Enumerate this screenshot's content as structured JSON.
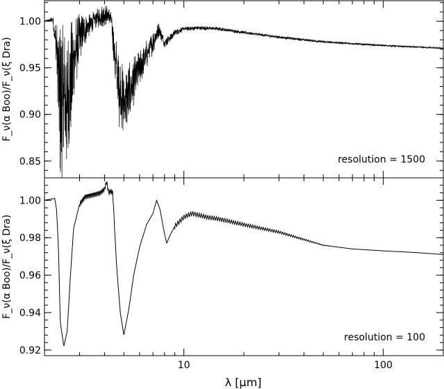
{
  "colors": {
    "line": "#000000",
    "axes": "#000000",
    "background": "#ffffff"
  },
  "xlabel": "λ [μm]",
  "chart_data": [
    {
      "type": "line",
      "title": "",
      "annotation": "resolution = 1500",
      "ylabel": "F_ν(α Boo)/F_ν(ξ Dra)",
      "xscale": "log",
      "xlim": [
        2.0,
        200.0
      ],
      "ylim": [
        0.832,
        1.022
      ],
      "x_tick_labels": [],
      "y_ticks": [
        0.85,
        0.9,
        0.95,
        1.0
      ],
      "y_tick_labels": [
        "0.85",
        "0.90",
        "0.95",
        "1.00"
      ],
      "series": [
        {
          "x": [
            2.0,
            2.2,
            2.3,
            2.4,
            2.6,
            2.8,
            3.0,
            3.3,
            3.6,
            4.0,
            4.3,
            4.5,
            4.7,
            5.0,
            5.3,
            5.8,
            6.3,
            7.0,
            7.5,
            8.0,
            8.5,
            9.0,
            10.0,
            12.0,
            15.0,
            20.0,
            30.0,
            50.0,
            100.0,
            200.0
          ],
          "y": [
            1.0,
            1.002,
            0.975,
            0.92,
            0.92,
            0.96,
            0.985,
            0.995,
            1.003,
            1.008,
            1.005,
            0.965,
            0.935,
            0.915,
            0.925,
            0.945,
            0.96,
            0.978,
            0.992,
            0.977,
            0.982,
            0.988,
            0.992,
            0.993,
            0.992,
            0.988,
            0.983,
            0.978,
            0.974,
            0.971
          ],
          "spread": [
            0,
            0.003,
            0.02,
            0.07,
            0.06,
            0.04,
            0.02,
            0.01,
            0.008,
            0.01,
            0.006,
            0.02,
            0.035,
            0.028,
            0.026,
            0.018,
            0.014,
            0.01,
            0.006,
            0.004,
            0.004,
            0.003,
            0.002,
            0.0018,
            0.0016,
            0.0014,
            0.0012,
            0.001,
            0.0008,
            0.0006
          ]
        }
      ]
    },
    {
      "type": "line",
      "title": "",
      "annotation": "resolution = 100",
      "ylabel": "F_ν(α Boo)/F_ν(ξ Dra)",
      "xscale": "log",
      "xlim": [
        2.0,
        200.0
      ],
      "ylim": [
        0.917,
        1.012
      ],
      "x_ticks": [
        10,
        100
      ],
      "x_tick_labels": [
        "10",
        "100"
      ],
      "y_ticks": [
        0.92,
        0.94,
        0.96,
        0.98,
        1.0
      ],
      "y_tick_labels": [
        "0.92",
        "0.94",
        "0.96",
        "0.98",
        "1.00"
      ],
      "series": [
        {
          "x": [
            2.0,
            2.25,
            2.3,
            2.35,
            2.4,
            2.5,
            2.6,
            2.7,
            2.8,
            3.0,
            3.2,
            3.5,
            3.8,
            4.0,
            4.1,
            4.2,
            4.3,
            4.4,
            4.6,
            4.8,
            5.0,
            5.3,
            5.6,
            6.0,
            6.5,
            7.0,
            7.3,
            7.6,
            7.9,
            8.2,
            8.5,
            9.0,
            10.0,
            11.0,
            13.0,
            15.0,
            20.0,
            30.0,
            50.0,
            70.0,
            100.0,
            150.0,
            200.0
          ],
          "y": [
            1.0,
            1.001,
            0.995,
            0.975,
            0.935,
            0.922,
            0.93,
            0.96,
            0.985,
            0.998,
            1.002,
            1.003,
            1.004,
            1.006,
            1.01,
            1.004,
            1.005,
            1.004,
            0.965,
            0.94,
            0.928,
            0.942,
            0.96,
            0.975,
            0.987,
            0.993,
            1.0,
            0.995,
            0.985,
            0.977,
            0.981,
            0.986,
            0.991,
            0.993,
            0.991,
            0.99,
            0.987,
            0.983,
            0.976,
            0.974,
            0.973,
            0.972,
            0.971
          ]
        }
      ]
    }
  ]
}
